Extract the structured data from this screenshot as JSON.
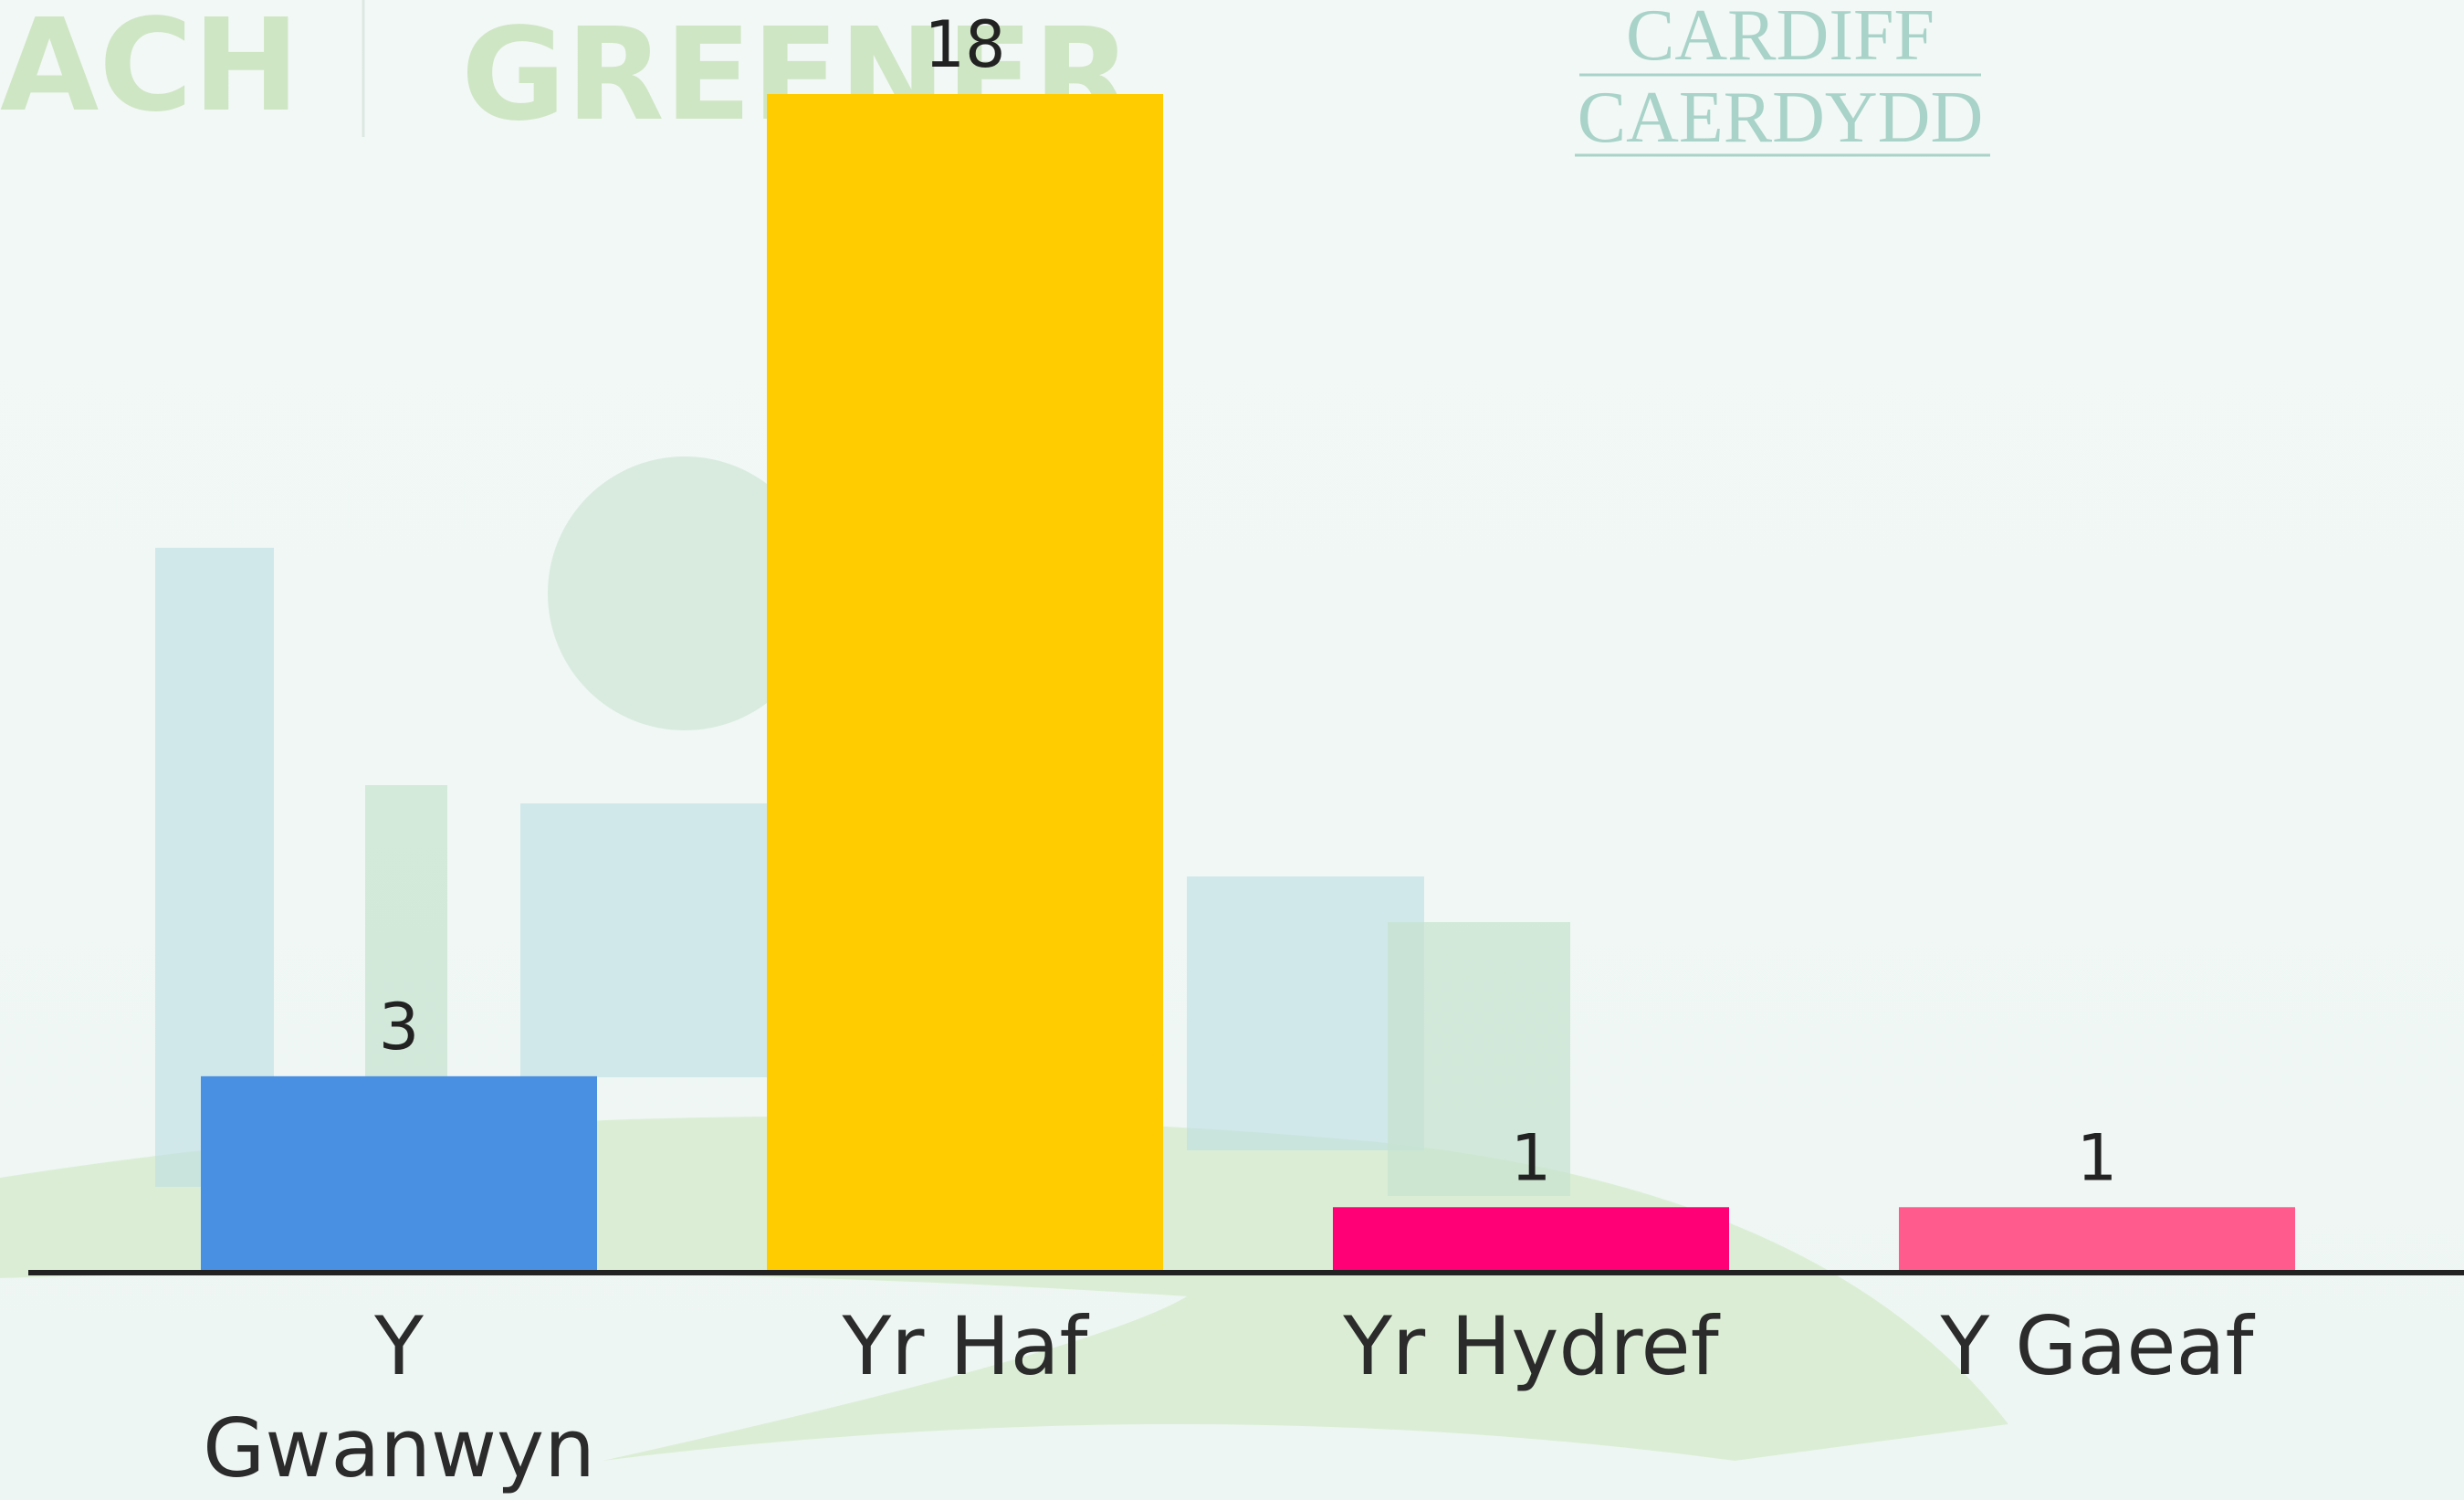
{
  "chart_data": {
    "type": "bar",
    "categories": [
      "Y Gwanwyn",
      "Yr Haf",
      "Yr Hydref",
      "Y Gaeaf"
    ],
    "values": [
      3,
      18,
      1,
      1
    ],
    "colors": [
      "#4a90e2",
      "#ffcc00",
      "#ff0077",
      "#ff5c8d"
    ],
    "background_texts": [
      "GREENER",
      "CARDIFF",
      "CAERDYDD"
    ]
  }
}
